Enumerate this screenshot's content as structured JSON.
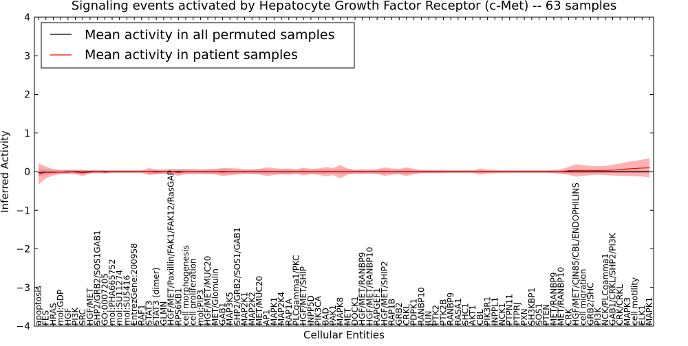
{
  "chart_data": {
    "type": "line",
    "title": "Signaling events activated by Hepatocyte Growth Factor Receptor (c-Met) -- 63 samples",
    "xlabel": "Cellular Entities",
    "ylabel": "Inferred Activity",
    "ylim": [
      -4,
      4
    ],
    "yticks": [
      -4,
      -3,
      -2,
      -1,
      0,
      1,
      2,
      3,
      4
    ],
    "grid": false,
    "legend_position": "top-left",
    "categories": [
      "apoptosis",
      "FES",
      "HRAS",
      "mol:GDP",
      "HGF",
      "PI3K",
      "SRC",
      "HGF/MET",
      "SHP2/GRB2/SOS1/GAB1",
      "GO:0007205",
      "mol:PHA665752",
      "mol:SU11274",
      "mol:SU5416",
      "EntrezGene:200958",
      "RAF1",
      "STAT3",
      "STAT3 (dimer)",
      "GLMN",
      "HGF/MET/Paxillin/FAK1/FAK12/RasGAP",
      "RPS6KB1",
      "cell morphogenesis",
      "cell proliferation",
      "mol:PIP3",
      "HGF/MET/MUC20",
      "MET/Glomulin",
      "GAB1",
      "MAP3K5",
      "SHP2/GRB2/SOS1/GAB1",
      "MAP2K1",
      "MAP2K2",
      "MET/MUC20",
      "AP1",
      "MAPK1",
      "MAP2K4",
      "RAP1A",
      "PLCgamma1/PKC",
      "HGF/MET/SHIP",
      "INPP5D",
      "PIK3CA",
      "BAD",
      "PAK1",
      "MAPK8",
      "MET",
      "DOCK1",
      "HGF/MET/RANBP9",
      "HGF/MET/RANBP10",
      "RAPGEF1",
      "HGF/MET/SHIP2",
      "RAP1B",
      "GRB2",
      "CRKL",
      "PDPK1",
      "RANBP10",
      "JUN",
      "PTK2",
      "PTK2B",
      "RANBP9",
      "RASA1",
      "SHC1",
      "AKT1",
      "CBL",
      "PIK3R1",
      "INPPL1",
      "NCK1",
      "PTPN11",
      "PTPRJ",
      "PXN",
      "SH3KBP1",
      "SOS1",
      "PTEN",
      "MET/RANBP9",
      "MET/RANBP10",
      "CRK",
      "HGF/MET/CIN85/CBL/ENDOPHILINS",
      "cell migration",
      "GRB2/SHC",
      "PI3K",
      "NCK/PLCgamma1",
      "GAB1/CRKL/SHP2/PI3K",
      "CRK/CRKL",
      "MAPK3",
      "cell motility",
      "ELK1",
      "MAPK1"
    ],
    "series": [
      {
        "name": "Mean activity in all permuted samples",
        "color": "#000000",
        "values": [
          -0.02,
          -0.01,
          -0.01,
          -0.01,
          -0.01,
          0.0,
          -0.01,
          0.0,
          0.0,
          0.0,
          0.0,
          0.0,
          0.0,
          0.0,
          0.0,
          0.0,
          0.0,
          0.0,
          0.0,
          0.0,
          0.0,
          0.0,
          0.0,
          0.0,
          0.0,
          0.0,
          0.0,
          0.0,
          0.0,
          0.0,
          0.0,
          0.0,
          0.0,
          0.0,
          0.0,
          0.0,
          0.0,
          0.0,
          0.0,
          0.0,
          0.0,
          0.0,
          0.0,
          0.0,
          0.0,
          0.0,
          0.0,
          0.0,
          0.0,
          0.0,
          0.0,
          0.0,
          0.0,
          0.0,
          0.0,
          0.0,
          0.0,
          0.0,
          0.0,
          0.0,
          0.0,
          0.0,
          0.0,
          0.0,
          0.0,
          0.0,
          0.0,
          0.0,
          0.0,
          0.0,
          0.0,
          0.0,
          0.0,
          0.0,
          0.0,
          0.0,
          0.0,
          0.0,
          0.0,
          0.0,
          0.0,
          0.0,
          0.0,
          0.0
        ],
        "band": [
          0.1,
          0.08,
          0.06,
          0.05,
          0.05,
          0.05,
          0.05,
          0.04,
          0.04,
          0.04,
          0.03,
          0.03,
          0.03,
          0.03,
          0.03,
          0.05,
          0.07,
          0.06,
          0.06,
          0.05,
          0.07,
          0.08,
          0.07,
          0.06,
          0.06,
          0.07,
          0.06,
          0.05,
          0.05,
          0.06,
          0.07,
          0.06,
          0.05,
          0.06,
          0.06,
          0.05,
          0.06,
          0.05,
          0.06,
          0.06,
          0.05,
          0.07,
          0.06,
          0.05,
          0.05,
          0.05,
          0.05,
          0.06,
          0.05,
          0.05,
          0.06,
          0.05,
          0.04,
          0.04,
          0.04,
          0.04,
          0.03,
          0.03,
          0.03,
          0.03,
          0.03,
          0.03,
          0.03,
          0.03,
          0.03,
          0.03,
          0.03,
          0.03,
          0.03,
          0.03,
          0.04,
          0.04,
          0.05,
          0.05,
          0.05,
          0.04,
          0.04,
          0.04,
          0.04,
          0.04,
          0.04,
          0.04,
          0.04,
          0.04
        ]
      },
      {
        "name": "Mean activity in patient samples",
        "color": "#ff0000",
        "values": [
          -0.06,
          -0.02,
          -0.02,
          -0.01,
          0.0,
          -0.01,
          -0.03,
          -0.01,
          0.0,
          -0.01,
          0.0,
          0.0,
          0.0,
          0.0,
          0.0,
          0.0,
          -0.01,
          0.0,
          0.0,
          -0.02,
          0.0,
          0.0,
          0.0,
          0.0,
          0.0,
          -0.01,
          0.0,
          0.0,
          0.0,
          0.0,
          0.0,
          0.0,
          0.0,
          0.0,
          0.0,
          0.0,
          0.0,
          0.0,
          0.0,
          0.0,
          0.0,
          0.0,
          0.0,
          0.0,
          0.0,
          0.0,
          0.0,
          0.0,
          0.0,
          0.0,
          0.0,
          0.0,
          0.0,
          0.0,
          0.0,
          0.0,
          0.0,
          0.0,
          0.0,
          0.0,
          0.0,
          0.0,
          0.0,
          0.0,
          0.0,
          0.0,
          0.0,
          0.0,
          0.0,
          0.0,
          0.0,
          0.0,
          0.02,
          0.03,
          0.03,
          0.03,
          0.03,
          0.03,
          0.04,
          0.05,
          0.07,
          0.08,
          0.09,
          0.1
        ],
        "band": [
          0.28,
          0.15,
          0.08,
          0.06,
          0.05,
          0.06,
          0.08,
          0.04,
          0.04,
          0.04,
          0.03,
          0.03,
          0.03,
          0.03,
          0.03,
          0.09,
          0.06,
          0.05,
          0.07,
          0.09,
          0.06,
          0.05,
          0.05,
          0.06,
          0.07,
          0.1,
          0.09,
          0.08,
          0.06,
          0.06,
          0.07,
          0.11,
          0.09,
          0.07,
          0.08,
          0.06,
          0.1,
          0.07,
          0.08,
          0.12,
          0.09,
          0.17,
          0.08,
          0.05,
          0.06,
          0.05,
          0.06,
          0.11,
          0.08,
          0.07,
          0.11,
          0.07,
          0.04,
          0.04,
          0.04,
          0.04,
          0.03,
          0.03,
          0.03,
          0.03,
          0.08,
          0.05,
          0.04,
          0.03,
          0.03,
          0.03,
          0.03,
          0.03,
          0.03,
          0.03,
          0.04,
          0.06,
          0.1,
          0.16,
          0.14,
          0.12,
          0.11,
          0.12,
          0.14,
          0.16,
          0.18,
          0.2,
          0.22,
          0.25
        ]
      }
    ],
    "shown_labels": [
      "apoptosis",
      "FES",
      "HRAS",
      "mol:GDP",
      "HGF",
      "PI3K",
      "SRC",
      "HGF/MET",
      "SHP2/GRB2/SOS1GAB1",
      "GO:0007205",
      "mol:PHA665752",
      "mol:SU11274",
      "mol:SU5416",
      "EntrezGene:200958",
      "RAF1",
      "STAT3",
      "STAT3 (dimer)",
      "GLMN",
      "HGF/MET/Paxillin/FAK1/FAK12/RasGAP",
      "RPS6KB1",
      "cell morphogenesis",
      "cell proliferation",
      "mol:PIP3",
      "HGF/MET/MUC20",
      "MET/Glomulin",
      "GAB1",
      "MAP3K5",
      "SHP2/GRB2/SOS1/GAB1",
      "MAP2K1",
      "MAP2K2",
      "MET/MUC20",
      "AP1",
      "MAPK1",
      "MAP2K4",
      "RAP1A",
      "PLCgamma1/PKC",
      "HGF/MET/SHIP",
      "INPP5D",
      "PIK3CA",
      "BAD",
      "PAK1",
      "MAPK8",
      "MET",
      "DOCK1",
      "HGF/MET/RANBP9",
      "HGF/MET/RANBP10",
      "RAPGEF1",
      "HGF/MET/SHIP2",
      "RAP1B",
      "GRB2",
      "CRKL",
      "PDPK1",
      "RANBP10",
      "JUN",
      "PTK2",
      "PTK2B",
      "RANBP9",
      "RASA1",
      "SHC1",
      "AKT1",
      "CBL",
      "PIK3R1",
      "INPPL1",
      "NCK1",
      "PTPN11",
      "PTPRJ",
      "PXN",
      "SH3KBP1",
      "SOS1",
      "PTEN",
      "MET/RANBP9",
      "MET/RANBP10",
      "CRK",
      "HGF/MET/CIN85/CBL/ENDOPHILINS",
      "cell migration",
      "GRB2/SHC",
      "PI3K",
      "NCK/PLCgamma1",
      "GAB1/CRKL/SHP2/PI3K",
      "CRK/CRKL",
      "MAPK3",
      "cell motility",
      "ELK1",
      "MAPK1"
    ]
  }
}
